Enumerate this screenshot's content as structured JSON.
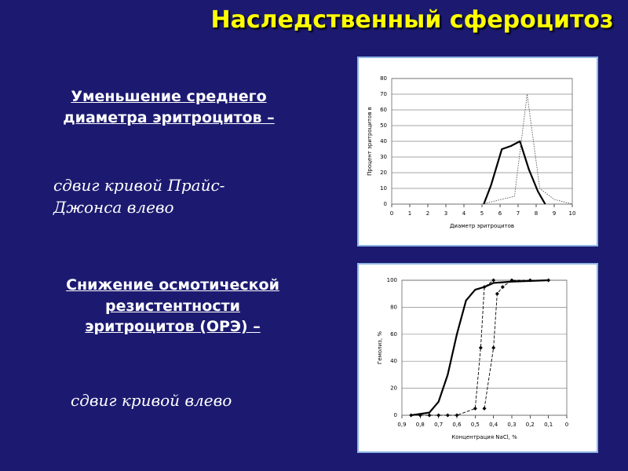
{
  "title": "Наследственный сфероцитоз",
  "sections": [
    {
      "heading": "Уменьшение среднего диаметра эритроцитов –",
      "text": "сдвиг кривой Прайс-Джонса влево"
    },
    {
      "heading": "Снижение осмотической резистентности эритроцитов (ОРЭ) –",
      "text": "сдвиг кривой влево"
    }
  ],
  "chart_data": [
    {
      "type": "line",
      "xlabel": "Диаметр эритроцитов",
      "ylabel": "Процент эритроцитов в",
      "xlim": [
        0,
        10
      ],
      "xticks": [
        0,
        1,
        2,
        3,
        4,
        5,
        6,
        7,
        8,
        9,
        10
      ],
      "ylim": [
        0,
        80
      ],
      "yticks": [
        0,
        10,
        20,
        30,
        40,
        50,
        60,
        70,
        80
      ],
      "grid": true,
      "series": [
        {
          "color": "#000000",
          "style": "thick",
          "x": [
            5.1,
            5.5,
            6.1,
            6.6,
            7.1,
            7.6,
            8.1,
            8.5
          ],
          "values": [
            0,
            12,
            35,
            37,
            40,
            22,
            8,
            0
          ]
        },
        {
          "color": "#555555",
          "style": "dotted",
          "x": [
            5,
            6.8,
            7.5,
            8.2,
            9,
            10
          ],
          "values": [
            0,
            5,
            70,
            10,
            3,
            0
          ]
        }
      ]
    },
    {
      "type": "line",
      "xlabel": "Концентрация NaCl, %",
      "ylabel": "Гемолиз, %",
      "xlim": [
        0.9,
        0
      ],
      "xticks": [
        {
          "value": 0.9,
          "label": "0,9"
        },
        {
          "value": 0.8,
          "label": "0,8"
        },
        {
          "value": 0.7,
          "label": "0,7"
        },
        {
          "value": 0.6,
          "label": "0,6"
        },
        {
          "value": 0.5,
          "label": "0,5"
        },
        {
          "value": 0.4,
          "label": "0,4"
        },
        {
          "value": 0.3,
          "label": "0,3"
        },
        {
          "value": 0.2,
          "label": "0,2"
        },
        {
          "value": 0.1,
          "label": "0,1"
        },
        0
      ],
      "ylim": [
        0,
        100
      ],
      "yticks": [
        0,
        20,
        40,
        60,
        80,
        100
      ],
      "grid": true,
      "series": [
        {
          "color": "#000000",
          "style": "thick",
          "x": [
            0.85,
            0.75,
            0.7,
            0.65,
            0.6,
            0.55,
            0.5,
            0.45,
            0.4,
            0.3,
            0.1
          ],
          "values": [
            0,
            2,
            10,
            30,
            60,
            85,
            93,
            95,
            98,
            99,
            100
          ]
        },
        {
          "color": "#000000",
          "style": "dashed",
          "marker": true,
          "x": [
            0.85,
            0.8,
            0.75,
            0.7,
            0.65,
            0.6,
            0.5,
            0.47,
            0.45,
            0.4
          ],
          "values": [
            0,
            0,
            0,
            0,
            0,
            0,
            5,
            50,
            95,
            100
          ]
        },
        {
          "color": "#000000",
          "style": "dashed",
          "marker": true,
          "x": [
            0.45,
            0.4,
            0.38,
            0.35,
            0.3,
            0.2,
            0.1
          ],
          "values": [
            5,
            50,
            90,
            95,
            100,
            100,
            100
          ]
        }
      ]
    }
  ]
}
